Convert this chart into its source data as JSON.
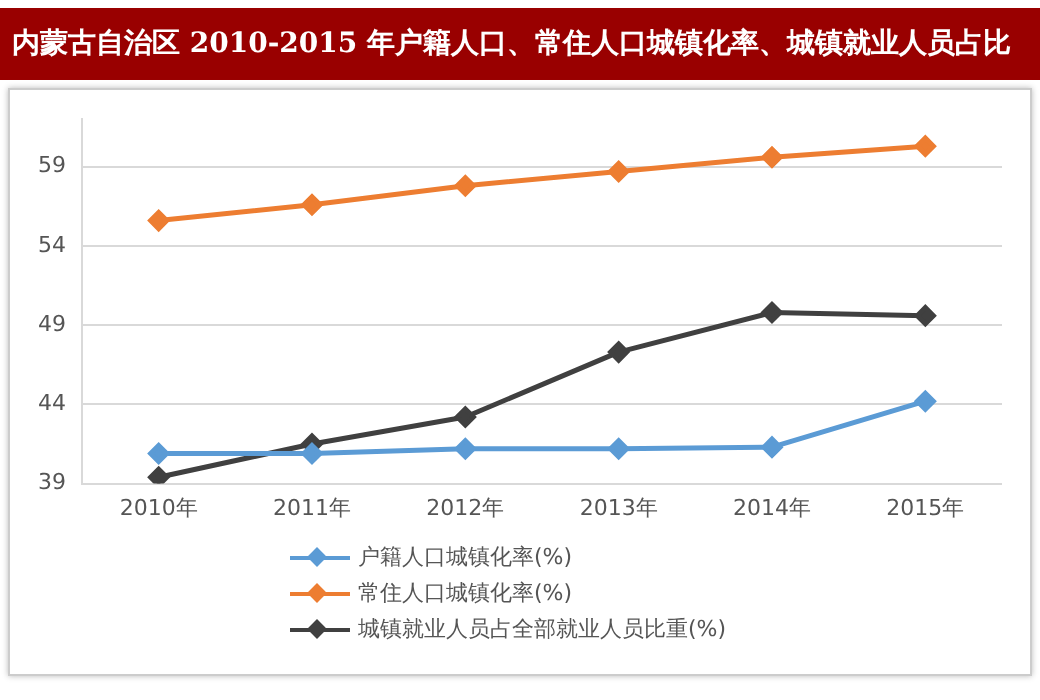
{
  "chart_data": {
    "type": "line",
    "title": "内蒙古自治区 2010-2015 年户籍人口、常住人口城镇化率、城镇就业人员占比",
    "categories": [
      "2010年",
      "2011年",
      "2012年",
      "2013年",
      "2014年",
      "2015年"
    ],
    "series": [
      {
        "name": "户籍人口城镇化率(%)",
        "color": "#5b9bd5",
        "values": [
          40.9,
          40.9,
          41.2,
          41.2,
          41.3,
          44.2
        ]
      },
      {
        "name": "常住人口城镇化率(%)",
        "color": "#ed7d31",
        "values": [
          55.6,
          56.6,
          57.8,
          58.7,
          59.6,
          60.3
        ]
      },
      {
        "name": "城镇就业人员占全部就业人员比重(%)",
        "color": "#404040",
        "values": [
          39.4,
          41.5,
          43.2,
          47.3,
          49.8,
          49.6
        ]
      }
    ],
    "ylim": [
      39,
      62
    ],
    "yticks": [
      39,
      44,
      49,
      54,
      59
    ],
    "grid": "y",
    "legend": "bottom left",
    "marker": "diamond",
    "line_style": "solid"
  }
}
